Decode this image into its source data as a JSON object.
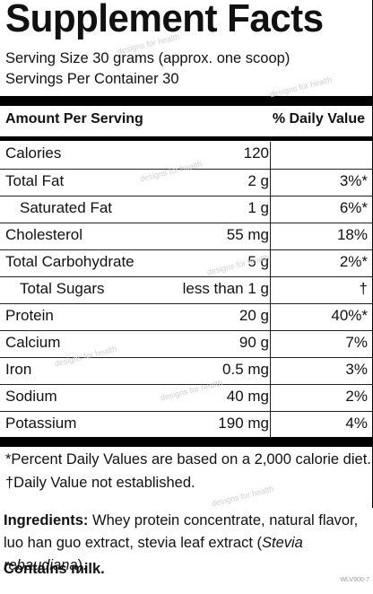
{
  "title": "Supplement Facts",
  "serving_size": "Serving Size 30 grams (approx. one scoop)",
  "servings_per_container": "Servings Per Container 30",
  "header": {
    "amount_per_serving": "Amount Per Serving",
    "daily_value": "% Daily Value"
  },
  "rows": [
    {
      "name": "Calories",
      "amount": "120",
      "dv": "",
      "indent": false
    },
    {
      "name": "Total Fat",
      "amount": "2 g",
      "dv": "3%*",
      "indent": false
    },
    {
      "name": "Saturated Fat",
      "amount": "1 g",
      "dv": "6%*",
      "indent": true
    },
    {
      "name": "Cholesterol",
      "amount": "55 mg",
      "dv": "18%",
      "indent": false
    },
    {
      "name": "Total Carbohydrate",
      "amount": "5 g",
      "dv": "2%*",
      "indent": false
    },
    {
      "name": "Total Sugars",
      "amount": "less than 1 g",
      "dv": "†",
      "indent": true
    },
    {
      "name": "Protein",
      "amount": "20 g",
      "dv": "40%*",
      "indent": false
    },
    {
      "name": "Calcium",
      "amount": "90 g",
      "dv": "7%",
      "indent": false
    },
    {
      "name": "Iron",
      "amount": "0.5 mg",
      "dv": "3%",
      "indent": false
    },
    {
      "name": "Sodium",
      "amount": "40 mg",
      "dv": "2%",
      "indent": false
    },
    {
      "name": "Potassium",
      "amount": "190 mg",
      "dv": "4%",
      "indent": false
    }
  ],
  "footnotes": {
    "percent": "*Percent Daily Values are based on a 2,000 calorie diet.",
    "dagger": "†Daily Value not established."
  },
  "ingredients": {
    "label": "Ingredients:",
    "text_before": " Whey protein concentrate, natural flavor, luo han guo extract, stevia leaf extract (",
    "italic": "Stevia rebaudiana",
    "text_after": ")."
  },
  "contains": "Contains milk.",
  "code": "WLV900-7",
  "watermark": "designs for health"
}
